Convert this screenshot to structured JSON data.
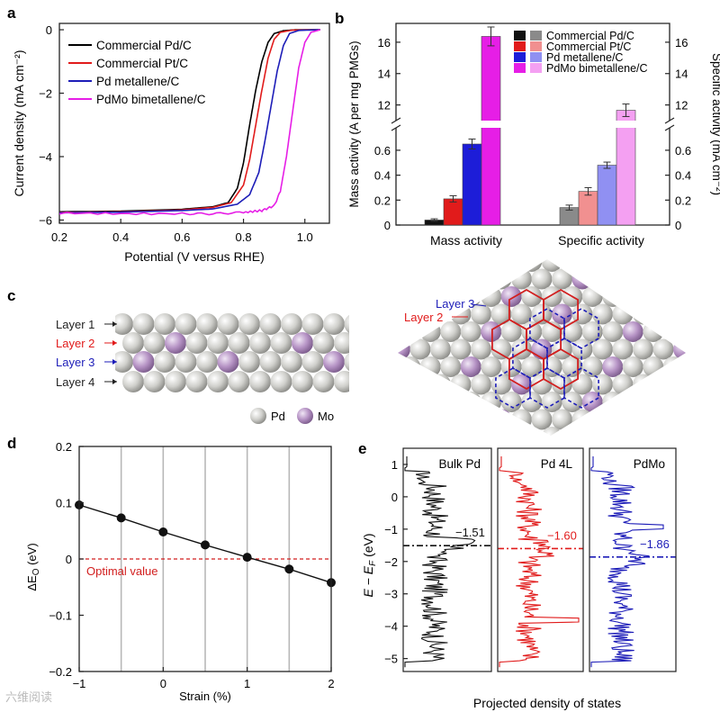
{
  "panel_labels": {
    "a": "a",
    "b": "b",
    "c": "c",
    "d": "d",
    "e": "e"
  },
  "watermark": "六维阅读",
  "chart_data": [
    {
      "panel": "a",
      "type": "line",
      "xlabel": "Potential (V versus RHE)",
      "ylabel": "Current density (mA cm⁻²)",
      "xlim": [
        0.2,
        1.08
      ],
      "ylim": [
        -6.1,
        0.2
      ],
      "xticks": [
        "0.2",
        "0.4",
        "0.6",
        "0.8",
        "1.0"
      ],
      "yticks": [
        "0",
        "−2",
        "−4",
        "−6"
      ],
      "xtick_values": [
        0.2,
        0.4,
        0.6,
        0.8,
        1.0
      ],
      "ytick_values": [
        0,
        -2,
        -4,
        -6
      ],
      "legend": "top-left",
      "series": [
        {
          "name": "Commercial Pd/C",
          "color": "#000000",
          "points": [
            [
              0.2,
              -5.74
            ],
            [
              0.4,
              -5.72
            ],
            [
              0.6,
              -5.66
            ],
            [
              0.7,
              -5.58
            ],
            [
              0.75,
              -5.45
            ],
            [
              0.78,
              -5.0
            ],
            [
              0.8,
              -4.2
            ],
            [
              0.82,
              -3.0
            ],
            [
              0.84,
              -1.9
            ],
            [
              0.86,
              -1.0
            ],
            [
              0.88,
              -0.4
            ],
            [
              0.9,
              -0.12
            ],
            [
              0.93,
              -0.03
            ],
            [
              0.97,
              0.0
            ],
            [
              1.05,
              0.0
            ]
          ]
        },
        {
          "name": "Commercial Pt/C",
          "color": "#e11b1b",
          "points": [
            [
              0.2,
              -5.76
            ],
            [
              0.4,
              -5.74
            ],
            [
              0.6,
              -5.68
            ],
            [
              0.7,
              -5.6
            ],
            [
              0.76,
              -5.45
            ],
            [
              0.8,
              -4.9
            ],
            [
              0.82,
              -4.1
            ],
            [
              0.84,
              -3.0
            ],
            [
              0.86,
              -1.9
            ],
            [
              0.88,
              -0.9
            ],
            [
              0.9,
              -0.3
            ],
            [
              0.92,
              -0.08
            ],
            [
              0.96,
              -0.01
            ],
            [
              1.05,
              0.0
            ]
          ]
        },
        {
          "name": "Pd metallene/C",
          "color": "#1d1db8",
          "points": [
            [
              0.2,
              -5.77
            ],
            [
              0.4,
              -5.75
            ],
            [
              0.6,
              -5.7
            ],
            [
              0.7,
              -5.65
            ],
            [
              0.78,
              -5.5
            ],
            [
              0.82,
              -5.2
            ],
            [
              0.85,
              -4.5
            ],
            [
              0.87,
              -3.5
            ],
            [
              0.89,
              -2.4
            ],
            [
              0.91,
              -1.3
            ],
            [
              0.93,
              -0.5
            ],
            [
              0.95,
              -0.12
            ],
            [
              0.98,
              -0.02
            ],
            [
              1.05,
              0.0
            ]
          ]
        },
        {
          "name": "PdMo bimetallene/C",
          "color": "#e61ee6",
          "points": [
            [
              0.2,
              -5.78
            ],
            [
              0.4,
              -5.8
            ],
            [
              0.6,
              -5.8
            ],
            [
              0.7,
              -5.8
            ],
            [
              0.8,
              -5.76
            ],
            [
              0.86,
              -5.7
            ],
            [
              0.9,
              -5.55
            ],
            [
              0.92,
              -5.1
            ],
            [
              0.94,
              -4.0
            ],
            [
              0.96,
              -2.6
            ],
            [
              0.98,
              -1.2
            ],
            [
              1.0,
              -0.4
            ],
            [
              1.02,
              -0.08
            ],
            [
              1.05,
              0.0
            ]
          ]
        }
      ]
    },
    {
      "panel": "b",
      "type": "bar",
      "categories": [
        "Mass activity",
        "Specific activity"
      ],
      "ylabel_left": "Mass activity (A per mg PMGs)",
      "ylabel_right": "Specific activity (mA cm⁻²)",
      "ylim_lower": [
        0,
        0.78
      ],
      "ylim_upper": [
        11,
        17.2
      ],
      "yticks_lower": [
        "0",
        "0.2",
        "0.4",
        "0.6"
      ],
      "yticks_upper": [
        "12",
        "14",
        "16"
      ],
      "ytick_values_lower": [
        0,
        0.2,
        0.4,
        0.6
      ],
      "ytick_values_upper": [
        12,
        14,
        16
      ],
      "axis_break": true,
      "legend": "top-right",
      "legend_labels": [
        "Commercial Pd/C",
        "Commercial Pt/C",
        "Pd metallene/C",
        "PdMo bimetallene/C"
      ],
      "mass_series": [
        {
          "color": "#111111",
          "value": 0.04,
          "error": 0.01
        },
        {
          "color": "#e11b1b",
          "value": 0.21,
          "error": 0.025
        },
        {
          "color": "#1d1dd8",
          "value": 0.65,
          "error": 0.04
        },
        {
          "color": "#e61ee6",
          "value": 16.37,
          "error": 0.6
        }
      ],
      "specific_series": [
        {
          "color": "#8a8a8a",
          "value": 0.14,
          "error": 0.02
        },
        {
          "color": "#f19090",
          "value": 0.27,
          "error": 0.03
        },
        {
          "color": "#9090f2",
          "value": 0.48,
          "error": 0.025
        },
        {
          "color": "#f4a0f2",
          "value": 11.66,
          "error": 0.4
        }
      ]
    },
    {
      "panel": "d",
      "type": "line",
      "xlabel": "Strain (%)",
      "ylabel": "ΔE",
      "ylabel_sub": "O",
      "ylabel_unit": " (eV)",
      "xlim": [
        -1,
        2
      ],
      "ylim": [
        -0.2,
        0.2
      ],
      "xticks": [
        "−1",
        "0",
        "1",
        "2"
      ],
      "yticks": [
        "0.2",
        "0.1",
        "0",
        "−0.1",
        "−0.2"
      ],
      "xtick_values": [
        -1,
        0,
        1,
        2
      ],
      "ytick_values": [
        0.2,
        0.1,
        0,
        -0.1,
        -0.2
      ],
      "gridlines_x": [
        -0.5,
        0,
        0.5,
        1,
        1.5
      ],
      "x": [
        -1,
        -0.5,
        0,
        0.5,
        1,
        1.5,
        2
      ],
      "y": [
        0.096,
        0.073,
        0.048,
        0.025,
        0.003,
        -0.018,
        -0.042
      ],
      "reference_line": {
        "y": 0,
        "label": "Optimal value",
        "color": "#d21f1f"
      }
    },
    {
      "panel": "e",
      "type": "line",
      "xlabel": "Projected density of states",
      "ylabel": "E − E",
      "ylabel_sub": "F",
      "ylabel_unit": " (eV)",
      "ylim": [
        -5.4,
        1.5
      ],
      "yticks": [
        "1",
        "0",
        "−1",
        "−2",
        "−3",
        "−4",
        "−5"
      ],
      "ytick_values": [
        1,
        0,
        -1,
        -2,
        -3,
        -4,
        -5
      ],
      "subpanels": [
        {
          "label": "Bulk Pd",
          "color": "#111111",
          "center": -1.51,
          "center_label": "−1.51"
        },
        {
          "label": "Pd 4L",
          "color": "#e11b1b",
          "center": -1.6,
          "center_label": "−1.60"
        },
        {
          "label": "PdMo",
          "color": "#1d1db8",
          "center": -1.86,
          "center_label": "−1.86"
        }
      ]
    }
  ],
  "structure": {
    "layers": [
      "Layer 1",
      "Layer 2",
      "Layer 3",
      "Layer 4"
    ],
    "layer_colors": [
      "#222222",
      "#e11b1b",
      "#1d1db8",
      "#222222"
    ],
    "top_view_labels": [
      "Layer 3",
      "Layer 2"
    ],
    "atom_legend": [
      "Pd",
      "Mo"
    ],
    "pd_color": "#c8c8c4",
    "mo_color": "#b592c4"
  }
}
